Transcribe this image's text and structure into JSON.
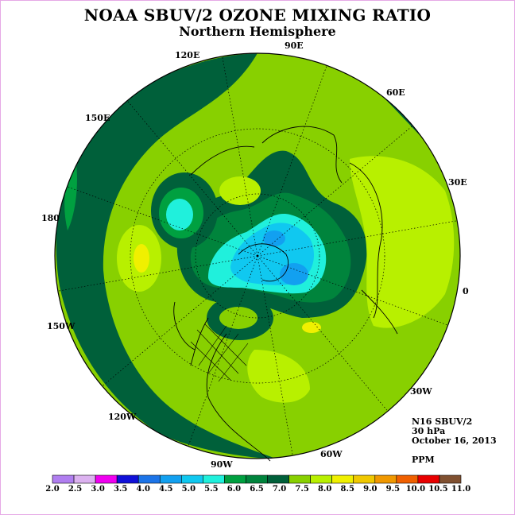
{
  "header": {
    "title": "NOAA SBUV/2 OZONE MIXING RATIO",
    "subtitle": "Northern Hemisphere"
  },
  "map": {
    "projection": "north-polar-stereographic",
    "longitude_labels": [
      {
        "id": "90E",
        "text": "90E"
      },
      {
        "id": "60E",
        "text": "60E"
      },
      {
        "id": "30E",
        "text": "30E"
      },
      {
        "id": "0",
        "text": "0"
      },
      {
        "id": "30W",
        "text": "30W"
      },
      {
        "id": "60W",
        "text": "60W"
      },
      {
        "id": "90W",
        "text": "90W"
      },
      {
        "id": "120W",
        "text": "120W"
      },
      {
        "id": "150W",
        "text": "150W"
      },
      {
        "id": "180",
        "text": "180"
      },
      {
        "id": "150E",
        "text": "150E"
      },
      {
        "id": "120E",
        "text": "120E"
      }
    ]
  },
  "info": {
    "instrument": "N16 SBUV/2",
    "level": "30 hPa",
    "date": "October 16, 2013",
    "units": "PPM"
  },
  "colorbar": {
    "labels": [
      "2.0",
      "2.5",
      "3.0",
      "3.5",
      "4.0",
      "4.5",
      "5.0",
      "5.5",
      "6.0",
      "6.5",
      "7.0",
      "7.5",
      "8.0",
      "8.5",
      "9.0",
      "9.5",
      "10.0",
      "10.5",
      "11.0"
    ],
    "colors": [
      "#b07ef0",
      "#dcb2f0",
      "#f000f0",
      "#1010d8",
      "#1c74e8",
      "#12a0f0",
      "#10c8f0",
      "#20f0dc",
      "#00a040",
      "#00843c",
      "#00603a",
      "#88d000",
      "#b8f000",
      "#f0f000",
      "#f0c800",
      "#f09800",
      "#f06000",
      "#e80000",
      "#805030"
    ]
  }
}
